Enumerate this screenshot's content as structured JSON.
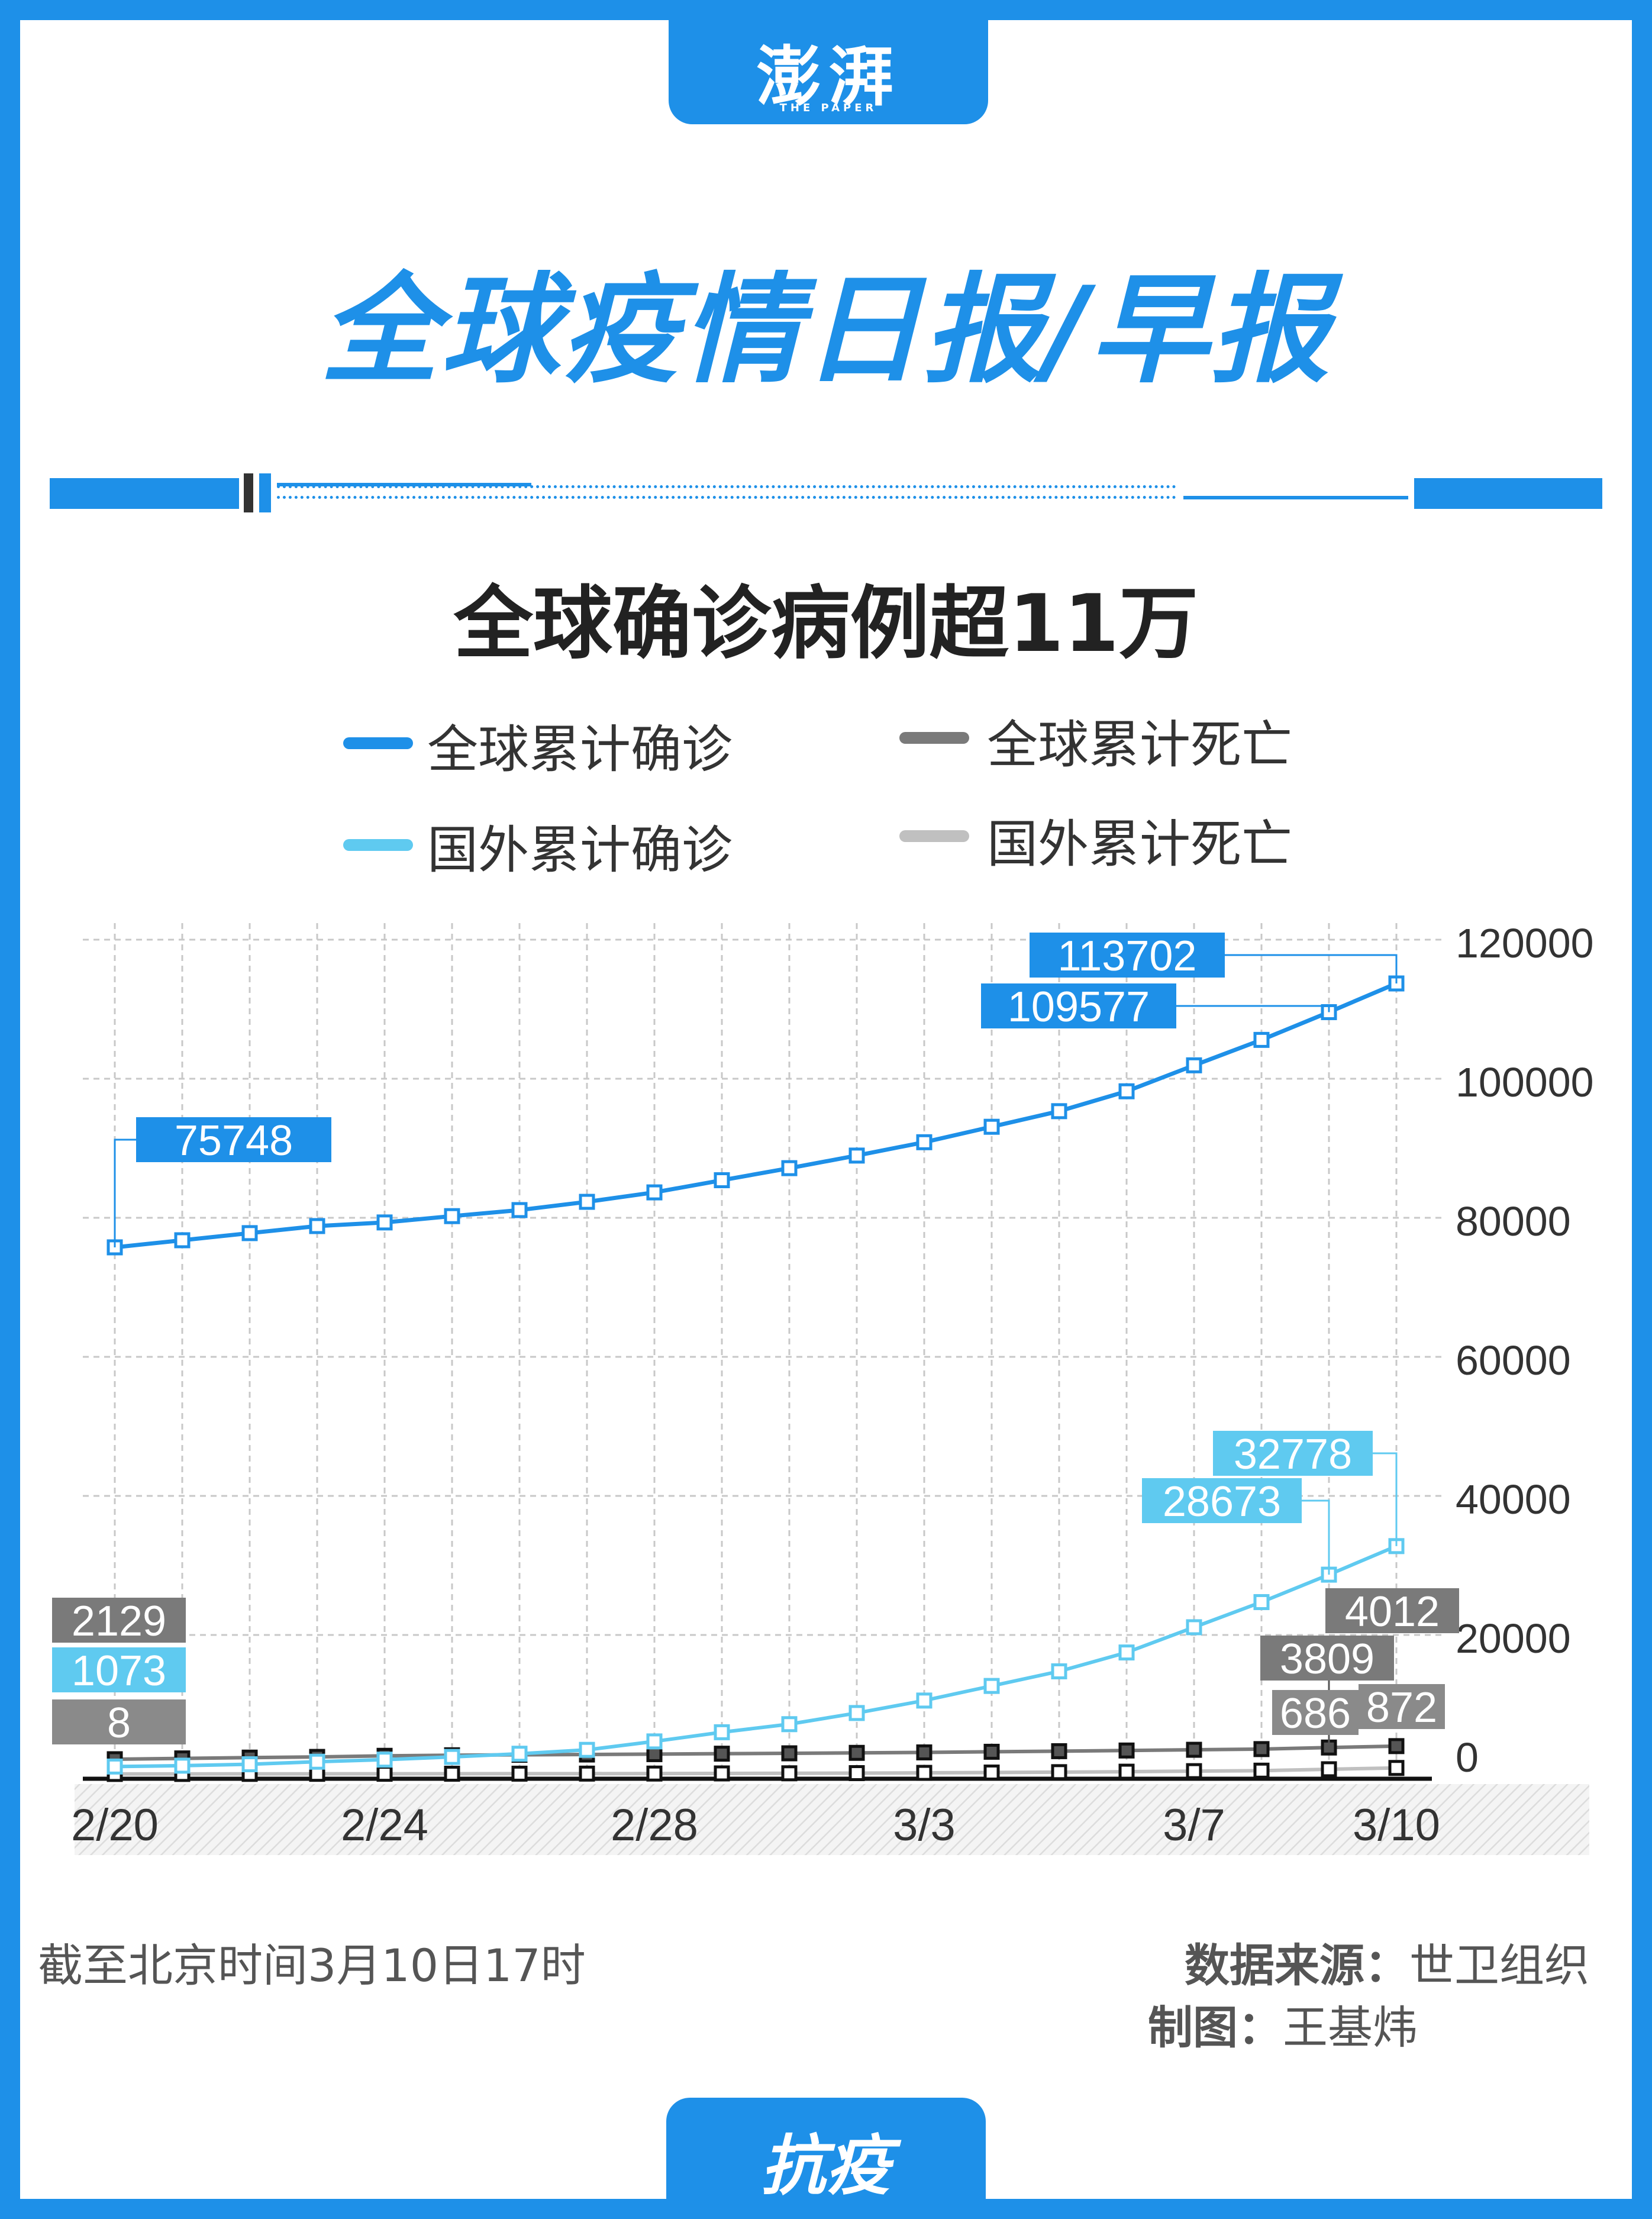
{
  "brand": {
    "name_cn": "澎湃",
    "name_en": "THE PAPER"
  },
  "header": {
    "title": "全球疫情日报/早报"
  },
  "footer": {
    "cutoff": "截至北京时间3月10日17时",
    "source_key": "数据来源：",
    "source_value": "世卫组织",
    "author_key": "制图：",
    "author_value": "王基炜",
    "tag": "抗疫"
  },
  "colors": {
    "brand_blue": "#1e90e8",
    "global_confirmed": "#1e90e8",
    "foreign_confirmed": "#5fcaf0",
    "global_deaths": "#7a7a7a",
    "foreign_deaths": "#c0c0c0",
    "grid": "#c8c8c8"
  },
  "chart_data": {
    "type": "line",
    "title": "全球确诊病例超11万",
    "legend_position": "top",
    "x_tick_labels": [
      "2/20",
      "2/24",
      "2/28",
      "3/3",
      "3/7",
      "3/10"
    ],
    "x": [
      "2/20",
      "2/21",
      "2/22",
      "2/23",
      "2/24",
      "2/25",
      "2/26",
      "2/27",
      "2/28",
      "2/29",
      "3/1",
      "3/2",
      "3/3",
      "3/4",
      "3/5",
      "3/6",
      "3/7",
      "3/8",
      "3/9",
      "3/10"
    ],
    "y_axis": {
      "ticks": [
        0,
        20000,
        40000,
        60000,
        80000,
        100000,
        120000
      ],
      "tick_labels": [
        "0",
        "20000",
        "40000",
        "60000",
        "80000",
        "100000",
        "120000"
      ],
      "ylim": [
        0,
        120000
      ],
      "position": "right"
    },
    "grid": true,
    "series": [
      {
        "name": "全球累计确诊",
        "color": "#1e90e8",
        "values": [
          75748,
          76769,
          77794,
          78811,
          79331,
          80239,
          81109,
          82294,
          83652,
          85403,
          87137,
          88948,
          90869,
          93090,
          95333,
          98192,
          101927,
          105586,
          109577,
          113702
        ]
      },
      {
        "name": "国外累计确诊",
        "color": "#5fcaf0",
        "values": [
          1073,
          1200,
          1402,
          1769,
          2069,
          2459,
          2918,
          3474,
          4691,
          6009,
          7169,
          8774,
          10566,
          12668,
          14768,
          17481,
          21110,
          24727,
          28673,
          32778
        ]
      },
      {
        "name": "全球累计死亡",
        "color": "#7a7a7a",
        "values": [
          2129,
          2247,
          2360,
          2462,
          2618,
          2699,
          2762,
          2804,
          2858,
          2924,
          2977,
          3043,
          3110,
          3198,
          3285,
          3380,
          3486,
          3584,
          3809,
          4012
        ]
      },
      {
        "name": "国外累计死亡",
        "color": "#c0c0c0",
        "values": [
          8,
          11,
          19,
          27,
          34,
          43,
          50,
          57,
          64,
          86,
          104,
          128,
          166,
          214,
          267,
          335,
          413,
          484,
          686,
          872
        ]
      }
    ],
    "data_labels": [
      {
        "series": "全球累计确诊",
        "index": 0,
        "text": "75748"
      },
      {
        "series": "全球累计确诊",
        "index": 18,
        "text": "109577"
      },
      {
        "series": "全球累计确诊",
        "index": 19,
        "text": "113702"
      },
      {
        "series": "国外累计确诊",
        "index": 0,
        "text": "1073"
      },
      {
        "series": "国外累计确诊",
        "index": 18,
        "text": "28673"
      },
      {
        "series": "国外累计确诊",
        "index": 19,
        "text": "32778"
      },
      {
        "series": "全球累计死亡",
        "index": 0,
        "text": "2129"
      },
      {
        "series": "全球累计死亡",
        "index": 18,
        "text": "3809"
      },
      {
        "series": "全球累计死亡",
        "index": 19,
        "text": "4012"
      },
      {
        "series": "国外累计死亡",
        "index": 0,
        "text": "8"
      },
      {
        "series": "国外累计死亡",
        "index": 18,
        "text": "686"
      },
      {
        "series": "国外累计死亡",
        "index": 19,
        "text": "872"
      }
    ]
  }
}
